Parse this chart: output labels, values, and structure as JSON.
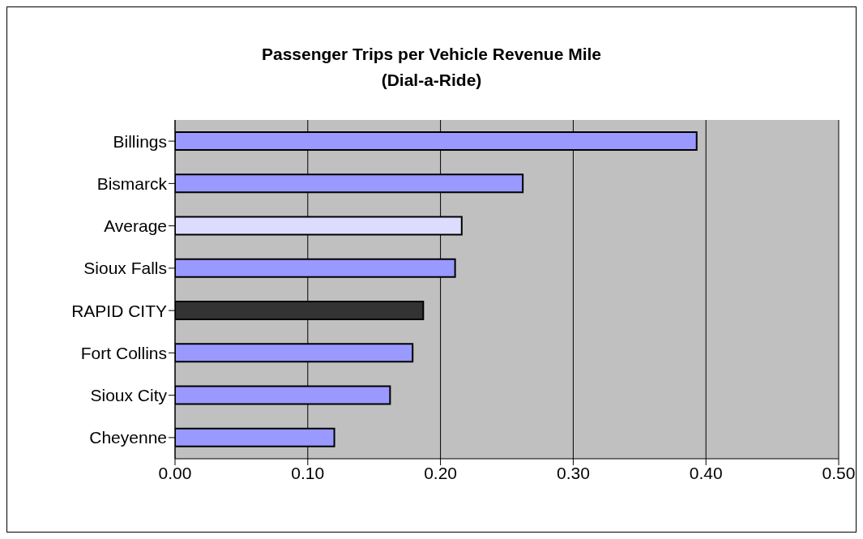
{
  "chart_data": {
    "type": "bar",
    "orientation": "horizontal",
    "title": "Passenger Trips per Vehicle Revenue Mile",
    "subtitle": "(Dial-a-Ride)",
    "categories": [
      "Billings",
      "Bismarck",
      "Average",
      "Sioux Falls",
      "RAPID CITY",
      "Fort Collins",
      "Sioux City",
      "Cheyenne"
    ],
    "values": [
      0.393,
      0.262,
      0.216,
      0.211,
      0.187,
      0.179,
      0.162,
      0.12
    ],
    "colors": [
      "#9999ff",
      "#9999ff",
      "#dcdcff",
      "#9999ff",
      "#333333",
      "#9999ff",
      "#9999ff",
      "#9999ff"
    ],
    "xlim": [
      0,
      0.5
    ],
    "xticks": [
      {
        "value": 0,
        "label": "0.00"
      },
      {
        "value": 0.1,
        "label": "0.10"
      },
      {
        "value": 0.2,
        "label": "0.20"
      },
      {
        "value": 0.3,
        "label": "0.30"
      },
      {
        "value": 0.4,
        "label": "0.40"
      },
      {
        "value": 0.5,
        "label": "0.50"
      }
    ],
    "grid": "x",
    "legend": false
  }
}
